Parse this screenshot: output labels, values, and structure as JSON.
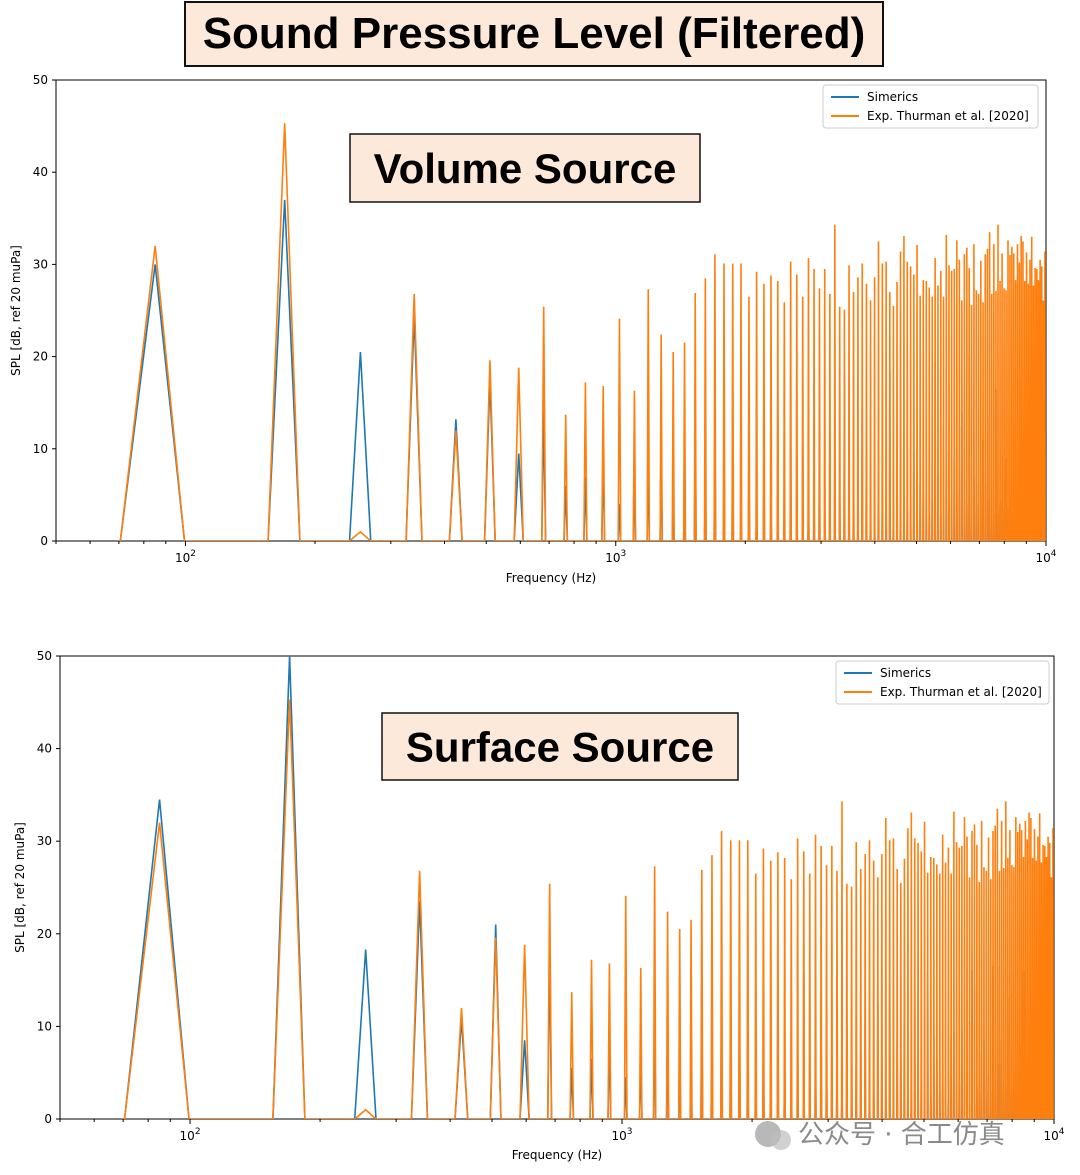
{
  "page_title": "Sound Pressure Level (Filtered)",
  "watermark": "公众号 · 合工仿真",
  "colors": {
    "simerics": "#1f77b4",
    "experiment": "#ff7f0e",
    "banner_bg": "#fde9d9"
  },
  "chart_data": [
    {
      "type": "line",
      "inset_label": "Volume Source",
      "xlabel": "Frequency (Hz)",
      "ylabel": "SPL [dB, ref 20 muPa]",
      "xscale": "log",
      "xlim": [
        50,
        10000
      ],
      "ylim": [
        0,
        50
      ],
      "yticks": [
        "0",
        "10",
        "20",
        "30",
        "40",
        "50"
      ],
      "xticks": [
        {
          "base": "10",
          "exp": "2",
          "value": 100
        },
        {
          "base": "10",
          "exp": "3",
          "value": 1000
        },
        {
          "base": "10",
          "exp": "4",
          "value": 10000
        }
      ],
      "legend": {
        "position": "top-right",
        "entries": [
          "Simerics",
          "Exp. Thurman et al. [2020]"
        ]
      },
      "harmonic_spacing_hz": 85,
      "series": [
        {
          "name": "Simerics",
          "color": "#1f77b4",
          "peaks_db": [
            30,
            37,
            20.5,
            24.5,
            13.2,
            17.5,
            9.5,
            14.5,
            6,
            7,
            9.5,
            4,
            8,
            11.5,
            13,
            6,
            5,
            14,
            7,
            13,
            5,
            9,
            3,
            8,
            3,
            7.5,
            3,
            13.5,
            3.5,
            9.5,
            8,
            10.5,
            4.5,
            3.5,
            8.5,
            3,
            12,
            10,
            4.5,
            18,
            8.5,
            6,
            3,
            14.5,
            9.5,
            4,
            2.5,
            10,
            3.5,
            4,
            18.5,
            3.5,
            4.5,
            6.5,
            5,
            4,
            3.5,
            9.5,
            7,
            6,
            5,
            3.5,
            3,
            4.5,
            19.5,
            7,
            3,
            12,
            9.5,
            3.5,
            4.5,
            9,
            5,
            12.5,
            14,
            4.5,
            4,
            20,
            3,
            7,
            4,
            6,
            5,
            11,
            6,
            4.5,
            13.5,
            3.5,
            3,
            16.5,
            3,
            4,
            4.5,
            3.5,
            9,
            3.5,
            5,
            3,
            5.5,
            12.5,
            3,
            5.5,
            17.5,
            3,
            5.5,
            3.5,
            4,
            4,
            8,
            4,
            4,
            3,
            4,
            3.5,
            5,
            17.5
          ]
        },
        {
          "name": "Exp. Thurman et al. [2020]",
          "color": "#ff7f0e",
          "peaks_db": [
            32,
            45.3,
            1,
            26.8,
            12,
            19.6,
            18.8,
            25.4,
            13.7,
            17.2,
            16.8,
            24.1,
            16.3,
            27.3,
            22.4,
            20.5,
            21.5,
            26.9,
            28.5,
            31.1,
            30.1,
            30.1,
            30.1,
            26.5,
            29.2,
            27.9,
            28.8,
            28.2,
            25.9,
            30.3,
            28.9,
            26.5,
            30.7,
            29.5,
            27.4,
            29.5,
            26.8,
            34.3,
            25.4,
            25.1,
            29.9,
            27,
            28.6,
            30.1,
            27.9,
            26.1,
            28.6,
            32.5,
            30.1,
            30.3,
            27,
            25.5,
            28.1,
            31.4,
            33.1,
            30.3,
            29.8,
            28.9,
            32.1,
            26.6,
            28.3,
            28.2,
            27.5,
            26.5,
            30.7,
            27.7,
            29.3,
            26.5,
            33.2,
            29.9,
            29.3,
            29.5,
            32.6,
            30.5,
            26.1,
            31.1,
            31.8,
            29.6,
            25.6,
            32.2,
            27.2,
            26.8,
            30.4,
            25.9,
            31.1,
            31.7,
            33.5,
            26.8,
            32.2,
            27.1,
            34.3,
            28.2,
            31.2,
            27.4,
            27.2,
            32.6,
            31,
            31.9,
            31.2,
            28.3,
            32.2,
            30.2,
            33.1,
            32.5,
            28.2,
            31.3,
            27.9,
            30.5,
            33,
            27.7,
            29.6,
            29.5,
            28.3,
            30.5,
            29.8,
            26.1,
            31.4
          ]
        }
      ]
    },
    {
      "type": "line",
      "inset_label": "Surface Source",
      "xlabel": "Frequency (Hz)",
      "ylabel": "SPL [dB, ref 20 muPa]",
      "xscale": "log",
      "xlim": [
        50,
        10000
      ],
      "ylim": [
        0,
        50
      ],
      "yticks": [
        "0",
        "10",
        "20",
        "30",
        "40",
        "50"
      ],
      "xticks": [
        {
          "base": "10",
          "exp": "2",
          "value": 100
        },
        {
          "base": "10",
          "exp": "3",
          "value": 1000
        },
        {
          "base": "10",
          "exp": "4",
          "value": 10000
        }
      ],
      "legend": {
        "position": "top-right",
        "entries": [
          "Simerics",
          "Exp. Thurman et al. [2020]"
        ]
      },
      "harmonic_spacing_hz": 85,
      "series": [
        {
          "name": "Simerics",
          "color": "#1f77b4",
          "peaks_db": [
            34.5,
            50,
            18.3,
            23.5,
            10.8,
            21,
            8.5,
            18.5,
            5.5,
            6.5,
            9,
            4.5,
            7.5,
            10.5,
            10,
            9.5,
            3,
            12.5,
            10,
            13,
            9,
            10.5,
            7,
            3,
            7.5,
            8.5,
            13,
            7,
            3.5,
            8.5,
            16,
            5,
            6.5,
            11,
            6.5,
            6.5,
            5,
            2.5,
            10,
            8.5,
            5.5,
            7.5,
            12,
            2.5,
            3.5,
            12.5,
            6,
            2.5,
            14.5,
            3,
            8.5,
            6,
            18,
            3.5,
            3,
            14.5,
            5.5,
            4.5,
            11,
            16,
            3,
            9,
            6.5,
            3,
            5,
            4.5,
            3.5,
            9,
            9.5,
            4,
            4,
            9.5,
            3.5,
            4,
            10.5,
            16,
            14.5,
            3.5,
            3,
            7,
            8.5,
            4.5,
            3,
            3,
            16.5,
            5,
            16.5,
            6,
            8.5,
            4,
            3.5,
            13,
            3,
            3.5,
            5,
            7.5,
            3,
            10.5,
            8,
            16,
            3.5,
            4.5,
            5.5,
            7,
            4,
            5,
            4,
            4,
            6.5,
            9.5,
            3,
            3.5,
            3,
            18
          ]
        },
        {
          "name": "Exp. Thurman et al. [2020]",
          "color": "#ff7f0e",
          "peaks_db": [
            32,
            45.3,
            1,
            26.8,
            12,
            19.6,
            18.8,
            25.4,
            13.7,
            17.2,
            16.8,
            24.1,
            16.3,
            27.3,
            22.4,
            20.5,
            21.5,
            26.9,
            28.5,
            31.1,
            30.1,
            30.1,
            30.1,
            26.5,
            29.2,
            27.9,
            28.8,
            28.2,
            25.9,
            30.3,
            28.9,
            26.5,
            30.7,
            29.5,
            27.4,
            29.5,
            26.8,
            34.3,
            25.4,
            25.1,
            29.9,
            27,
            28.6,
            30.1,
            27.9,
            26.1,
            28.6,
            32.5,
            30.1,
            30.3,
            27,
            25.5,
            28.1,
            31.4,
            33.1,
            30.3,
            29.8,
            28.9,
            32.1,
            26.6,
            28.3,
            28.2,
            27.5,
            26.5,
            30.7,
            27.7,
            29.3,
            26.5,
            33.2,
            29.9,
            29.3,
            29.5,
            32.6,
            30.5,
            26.1,
            31.1,
            31.8,
            29.6,
            25.6,
            32.2,
            27.2,
            26.8,
            30.4,
            25.9,
            31.1,
            31.7,
            33.5,
            26.8,
            32.2,
            27.1,
            34.3,
            28.2,
            31.2,
            27.4,
            27.2,
            32.6,
            31,
            31.9,
            31.2,
            28.3,
            32.2,
            30.2,
            33.1,
            32.5,
            28.2,
            31.3,
            27.9,
            30.5,
            33,
            27.7,
            29.6,
            29.5,
            28.3,
            30.5,
            29.8,
            26.1,
            31.4
          ]
        }
      ]
    }
  ]
}
